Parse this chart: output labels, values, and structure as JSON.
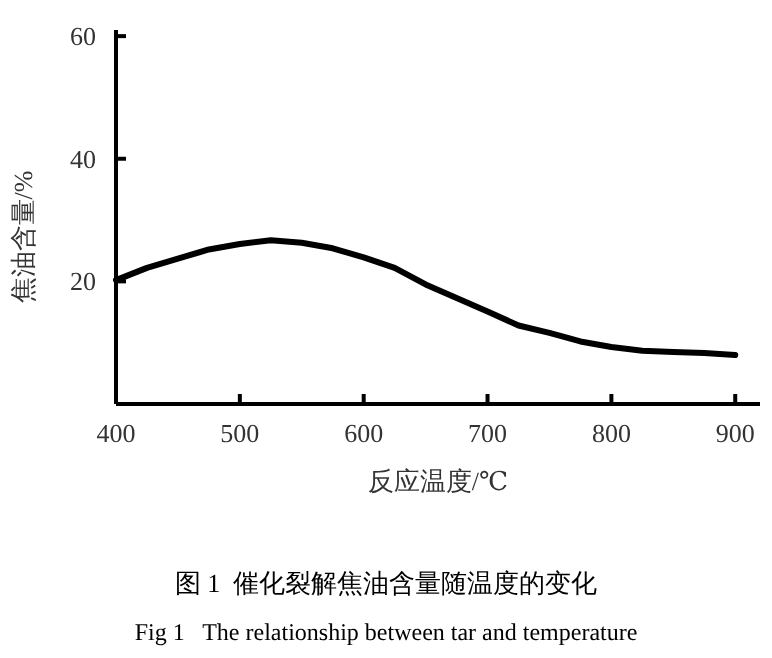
{
  "chart_data": {
    "type": "line",
    "xlabel": "反应温度/℃",
    "ylabel": "焦油含量/%",
    "x": [
      400,
      425,
      450,
      475,
      500,
      525,
      550,
      575,
      600,
      625,
      650,
      675,
      700,
      725,
      750,
      775,
      800,
      825,
      850,
      875,
      900
    ],
    "series": [
      {
        "color": "#000000",
        "values": [
          20.2,
          22.2,
          23.7,
          25.2,
          26.1,
          26.7,
          26.3,
          25.4,
          23.9,
          22.2,
          19.5,
          17.3,
          15.1,
          12.8,
          11.6,
          10.2,
          9.3,
          8.7,
          8.5,
          8.3,
          8.0
        ]
      }
    ],
    "xlim": [
      400,
      920
    ],
    "ylim": [
      0,
      61
    ],
    "xticks": [
      400,
      500,
      600,
      700,
      800,
      900
    ],
    "yticks": [
      20,
      40,
      60
    ],
    "annotations": [
      "图 1  催化裂解焦油含量随温度的变化",
      "Fig 1   The relationship between tar and temperature"
    ]
  }
}
